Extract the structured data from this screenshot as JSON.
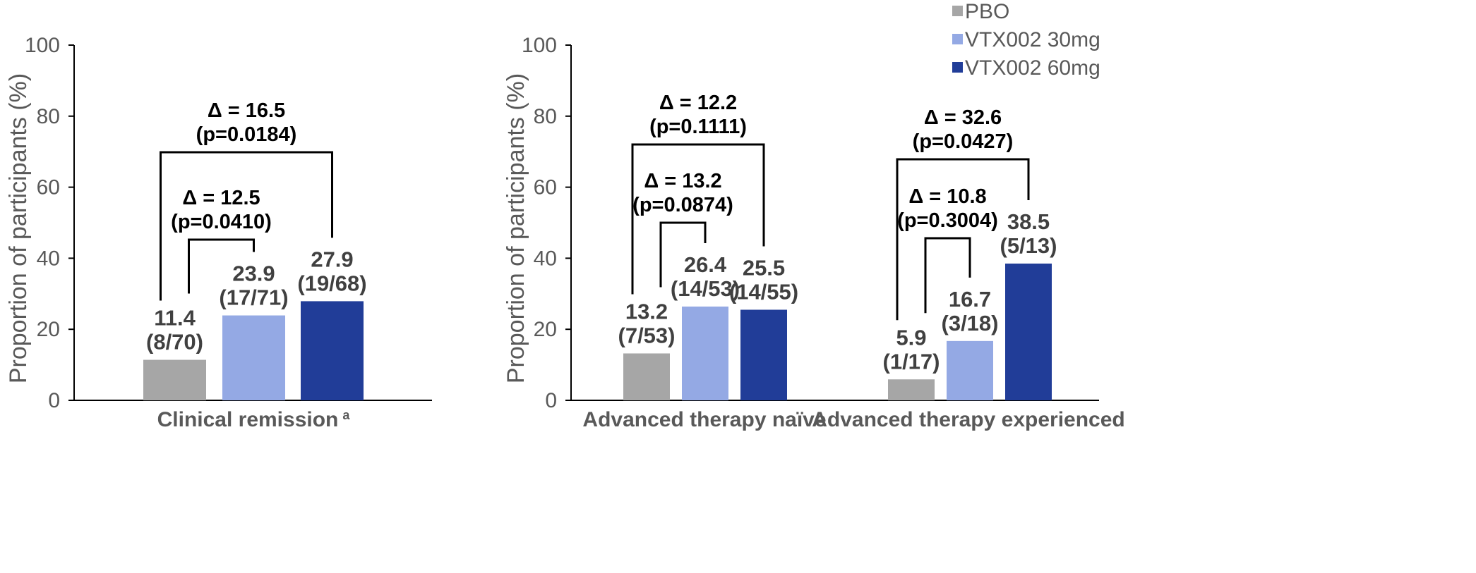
{
  "chart_data": [
    {
      "type": "bar",
      "ylabel": "Proportion of participants (%)",
      "ylim": [
        0,
        100
      ],
      "yticks": [
        "0",
        "20",
        "40",
        "60",
        "80",
        "100"
      ],
      "categories": [
        {
          "label": "Clinical remission",
          "sup": "a"
        }
      ],
      "series_names": [
        "PBO",
        "VTX002 30mg",
        "VTX002 60mg"
      ],
      "bars": [
        [
          {
            "value": 11.4,
            "label": "11.4",
            "count": "(8/70)"
          },
          {
            "value": 23.9,
            "label": "23.9",
            "count": "(17/71)"
          },
          {
            "value": 27.9,
            "label": "27.9",
            "count": "(19/68)"
          }
        ]
      ],
      "comparisons": [
        [
          {
            "delta_symbol": "Δ",
            "delta_text": " = 12.5",
            "p_text": "(p=0.0410)",
            "from": 0,
            "to": 1,
            "level": 1
          },
          {
            "delta_symbol": "Δ",
            "delta_text": " = 16.5",
            "p_text": "(p=0.0184)",
            "from": 0,
            "to": 2,
            "level": 2
          }
        ]
      ]
    },
    {
      "type": "bar",
      "ylabel": "Proportion of participants (%)",
      "ylim": [
        0,
        100
      ],
      "yticks": [
        "0",
        "20",
        "40",
        "60",
        "80",
        "100"
      ],
      "categories": [
        {
          "label": "Advanced therapy naïve",
          "sup": ""
        },
        {
          "label": "Advanced therapy experienced",
          "sup": ""
        }
      ],
      "series_names": [
        "PBO",
        "VTX002 30mg",
        "VTX002 60mg"
      ],
      "bars": [
        [
          {
            "value": 13.2,
            "label": "13.2",
            "count": "(7/53)"
          },
          {
            "value": 26.4,
            "label": "26.4",
            "count": "(14/53)"
          },
          {
            "value": 25.5,
            "label": "25.5",
            "count": "(14/55)"
          }
        ],
        [
          {
            "value": 5.9,
            "label": "5.9",
            "count": "(1/17)"
          },
          {
            "value": 16.7,
            "label": "16.7",
            "count": "(3/18)"
          },
          {
            "value": 38.5,
            "label": "38.5",
            "count": "(5/13)"
          }
        ]
      ],
      "comparisons": [
        [
          {
            "delta_symbol": "Δ",
            "delta_text": " = 13.2",
            "p_text": "(p=0.0874)",
            "from": 0,
            "to": 1,
            "level": 1
          },
          {
            "delta_symbol": "Δ",
            "delta_text": " = 12.2",
            "p_text": "(p=0.1111)",
            "from": 0,
            "to": 2,
            "level": 2
          }
        ],
        [
          {
            "delta_symbol": "Δ",
            "delta_text": " = 10.8",
            "p_text": "(p=0.3004)",
            "from": 0,
            "to": 1,
            "level": 1
          },
          {
            "delta_symbol": "Δ",
            "delta_text": " = 32.6",
            "p_text": "(p=0.0427)",
            "from": 0,
            "to": 2,
            "level": 2
          }
        ]
      ]
    }
  ],
  "legend": {
    "position": "top-right",
    "items": [
      {
        "label": "PBO",
        "color": "#A6A6A6"
      },
      {
        "label": "VTX002 30mg",
        "color": "#94A9E4"
      },
      {
        "label": "VTX002 60mg",
        "color": "#213D98"
      }
    ]
  }
}
